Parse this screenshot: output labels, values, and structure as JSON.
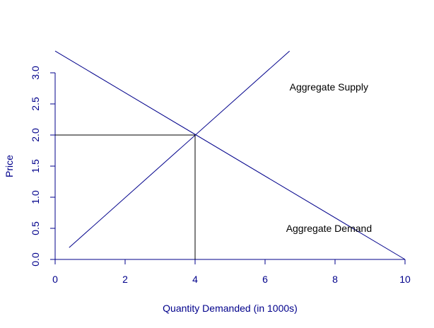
{
  "chart_data": {
    "type": "line",
    "title": "",
    "xlabel": "Quantity Demanded (in 1000s)",
    "ylabel": "Price",
    "xlim": [
      0,
      10
    ],
    "ylim": [
      0,
      3
    ],
    "x_ticks": [
      0,
      2,
      4,
      6,
      8,
      10
    ],
    "y_ticks": [
      0,
      0.5,
      1,
      1.5,
      2,
      2.5,
      3
    ],
    "x_tick_labels": [
      "0",
      "2",
      "4",
      "6",
      "8",
      "10"
    ],
    "y_tick_labels": [
      "0.0",
      "0.5",
      "1.0",
      "1.5",
      "2.0",
      "2.5",
      "3.0"
    ],
    "grid": false,
    "series": [
      {
        "name": "Aggregate Supply",
        "x": [
          0.4,
          6.7
        ],
        "y": [
          0.19,
          3.35
        ]
      },
      {
        "name": "Aggregate Demand",
        "x": [
          0,
          10
        ],
        "y": [
          3.35,
          0
        ]
      }
    ],
    "reference_lines": [
      {
        "from": [
          0,
          2
        ],
        "to": [
          4,
          2
        ]
      },
      {
        "from": [
          4,
          2
        ],
        "to": [
          4,
          0
        ]
      }
    ],
    "annotations": [
      {
        "text": "Aggregate Supply",
        "x": 6.7,
        "y": 2.77
      },
      {
        "text": "Aggregate Demand",
        "x": 6.6,
        "y": 0.5
      }
    ],
    "colors": {
      "axis": "#00008b",
      "series": "#00008b",
      "reference": "#000000",
      "annotation": "#000000"
    }
  }
}
